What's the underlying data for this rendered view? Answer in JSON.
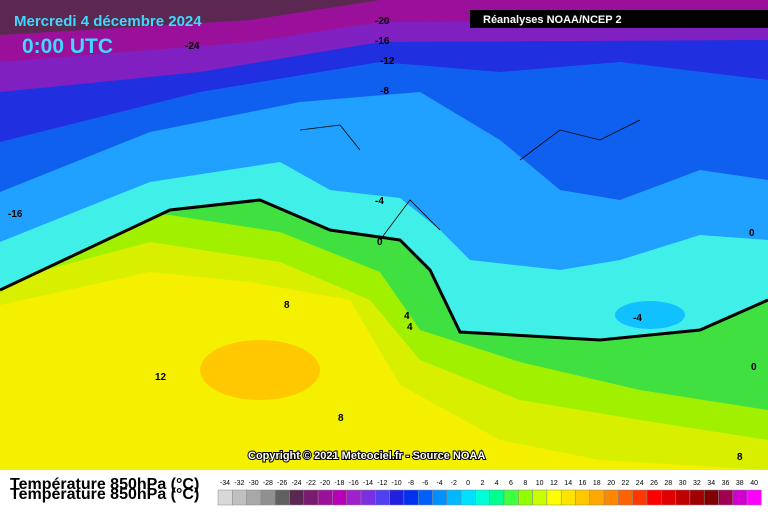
{
  "header": {
    "title": "Mercredi 4 décembre 2024",
    "time": "0:00 UTC",
    "source": "Réanalyses NOAA/NCEP 2"
  },
  "copyright": "Copyright © 2021 Meteociel.fr - Source NOAA",
  "legend": {
    "title": "Température 850hPa (°C)",
    "scale": [
      -34,
      -32,
      -30,
      -28,
      -26,
      -24,
      -22,
      -20,
      -18,
      -16,
      -14,
      -12,
      -10,
      -8,
      -6,
      -4,
      -2,
      0,
      2,
      4,
      6,
      8,
      10,
      12,
      14,
      16,
      18,
      20,
      22,
      24,
      26,
      28,
      30,
      32,
      34,
      36,
      38,
      40
    ],
    "colors": [
      "#d8d8d8",
      "#c0c0c0",
      "#a8a8a8",
      "#909090",
      "#606060",
      "#5a2850",
      "#7a1a70",
      "#9a109a",
      "#b800b8",
      "#a020d0",
      "#7a30e0",
      "#5040f0",
      "#2020e0",
      "#0030f0",
      "#0060ff",
      "#0090ff",
      "#00b8ff",
      "#00e0ff",
      "#00ffd8",
      "#00ff90",
      "#40ff40",
      "#90ff00",
      "#c8ff00",
      "#ffff00",
      "#ffe400",
      "#ffc800",
      "#ffa800",
      "#ff8800",
      "#ff6000",
      "#ff3800",
      "#ff0000",
      "#e00000",
      "#c00000",
      "#a00000",
      "#800000",
      "#a00050",
      "#d000d0",
      "#ff00ff"
    ]
  },
  "contour_labels": [
    -20,
    -16,
    -12,
    -8,
    -24,
    -4,
    0,
    -16,
    8,
    4,
    4,
    -4,
    0,
    0,
    12,
    8,
    8
  ]
}
